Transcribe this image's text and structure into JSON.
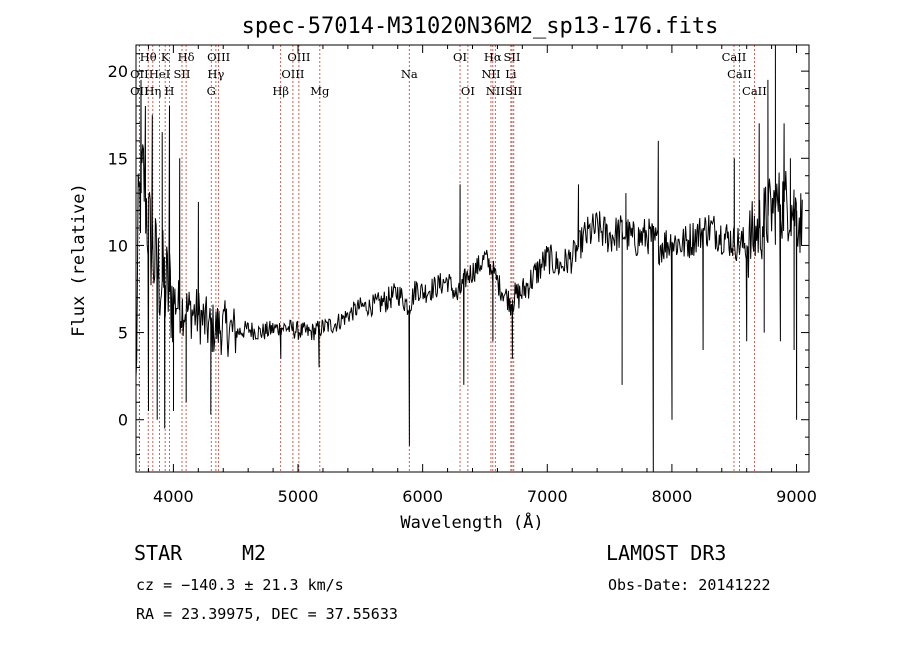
{
  "chart_data": {
    "type": "line",
    "title": "spec-57014-M31020N36M2_sp13-176.fits",
    "xlabel": "Wavelength (Å)",
    "ylabel": "Flux (relative)",
    "xlim": [
      3700,
      9100
    ],
    "ylim": [
      -3.0,
      21.5
    ],
    "x_ticks": [
      4000,
      5000,
      6000,
      7000,
      8000,
      9000
    ],
    "x_tick_labels": [
      "4000",
      "5000",
      "6000",
      "7000",
      "8000",
      "9000"
    ],
    "y_ticks": [
      0,
      5,
      10,
      15,
      20
    ],
    "y_tick_labels": [
      "0",
      "5",
      "10",
      "15",
      "20"
    ],
    "spectrum_anchors": [
      [
        3700,
        1.5
      ],
      [
        3720,
        12.0
      ],
      [
        3760,
        14.0
      ],
      [
        3800,
        11.0
      ],
      [
        3850,
        9.0
      ],
      [
        3900,
        8.0
      ],
      [
        3950,
        7.5
      ],
      [
        4000,
        7.0
      ],
      [
        4050,
        6.5
      ],
      [
        4100,
        6.3
      ],
      [
        4200,
        6.0
      ],
      [
        4300,
        5.2
      ],
      [
        4400,
        5.3
      ],
      [
        4500,
        5.0
      ],
      [
        4600,
        5.2
      ],
      [
        4700,
        5.0
      ],
      [
        4800,
        5.2
      ],
      [
        4900,
        5.3
      ],
      [
        5000,
        5.1
      ],
      [
        5100,
        5.0
      ],
      [
        5200,
        5.3
      ],
      [
        5300,
        5.5
      ],
      [
        5400,
        6.0
      ],
      [
        5500,
        6.5
      ],
      [
        5600,
        6.5
      ],
      [
        5700,
        6.8
      ],
      [
        5800,
        7.3
      ],
      [
        5890,
        6.5
      ],
      [
        5950,
        7.6
      ],
      [
        6000,
        7.3
      ],
      [
        6100,
        7.6
      ],
      [
        6200,
        8.0
      ],
      [
        6280,
        7.0
      ],
      [
        6350,
        8.2
      ],
      [
        6450,
        8.8
      ],
      [
        6500,
        9.3
      ],
      [
        6560,
        8.6
      ],
      [
        6620,
        7.6
      ],
      [
        6700,
        6.8
      ],
      [
        6800,
        7.3
      ],
      [
        6900,
        8.3
      ],
      [
        7000,
        9.3
      ],
      [
        7100,
        8.8
      ],
      [
        7200,
        9.3
      ],
      [
        7300,
        10.5
      ],
      [
        7400,
        11.0
      ],
      [
        7500,
        10.5
      ],
      [
        7600,
        10.8
      ],
      [
        7700,
        10.3
      ],
      [
        7800,
        10.6
      ],
      [
        7900,
        10.0
      ],
      [
        8000,
        10.2
      ],
      [
        8100,
        10.1
      ],
      [
        8200,
        10.6
      ],
      [
        8300,
        11.0
      ],
      [
        8400,
        10.6
      ],
      [
        8500,
        10.2
      ],
      [
        8600,
        10.0
      ],
      [
        8700,
        11.0
      ],
      [
        8800,
        12.0
      ],
      [
        8900,
        12.5
      ],
      [
        9000,
        12.0
      ],
      [
        9050,
        11.0
      ]
    ],
    "spectrum_spikes": [
      [
        3740,
        19.5
      ],
      [
        3775,
        18.0
      ],
      [
        3800,
        0.5
      ],
      [
        3830,
        17.5
      ],
      [
        3870,
        0.0
      ],
      [
        3910,
        16.5
      ],
      [
        3930,
        -0.5
      ],
      [
        3968,
        18.0
      ],
      [
        4000,
        0.5
      ],
      [
        4050,
        15.0
      ],
      [
        4102,
        1.0
      ],
      [
        4200,
        12.5
      ],
      [
        4300,
        0.3
      ],
      [
        4861,
        3.5
      ],
      [
        5169,
        3.0
      ],
      [
        5893,
        -1.5
      ],
      [
        6300,
        13.5
      ],
      [
        6330,
        2.0
      ],
      [
        6563,
        4.5
      ],
      [
        6720,
        3.5
      ],
      [
        7250,
        13.5
      ],
      [
        7600,
        2.0
      ],
      [
        7630,
        13.0
      ],
      [
        7850,
        -3.0
      ],
      [
        7890,
        16.0
      ],
      [
        8000,
        0.0
      ],
      [
        8250,
        4.0
      ],
      [
        8500,
        15.0
      ],
      [
        8600,
        4.5
      ],
      [
        8700,
        17.0
      ],
      [
        8740,
        5.0
      ],
      [
        8770,
        19.5
      ],
      [
        8830,
        21.5
      ],
      [
        8870,
        4.5
      ],
      [
        8900,
        17.0
      ],
      [
        8950,
        15.0
      ],
      [
        8980,
        4.0
      ],
      [
        9000,
        0.0
      ]
    ],
    "line_markers": [
      {
        "label": "Hθ",
        "wave": 3798,
        "row": 1
      },
      {
        "label": "OII",
        "wave": 3727,
        "row": 2
      },
      {
        "label": "OII",
        "wave": 3727,
        "row": 3
      },
      {
        "label": "Hη",
        "wave": 3835,
        "row": 3
      },
      {
        "label": "K",
        "wave": 3934,
        "row": 1
      },
      {
        "label": "HeI",
        "wave": 3889,
        "row": 2
      },
      {
        "label": "H",
        "wave": 3968,
        "row": 3
      },
      {
        "label": "SII",
        "wave": 4069,
        "row": 2
      },
      {
        "label": "Hδ",
        "wave": 4102,
        "row": 1
      },
      {
        "label": "OIII",
        "wave": 4363,
        "row": 1
      },
      {
        "label": "Hγ",
        "wave": 4341,
        "row": 2
      },
      {
        "label": "G",
        "wave": 4304,
        "row": 3
      },
      {
        "label": "Hβ",
        "wave": 4861,
        "row": 3
      },
      {
        "label": "OIII",
        "wave": 5007,
        "row": 1
      },
      {
        "label": "OIII",
        "wave": 4959,
        "row": 2
      },
      {
        "label": "Mg",
        "wave": 5175,
        "row": 3
      },
      {
        "label": "Na",
        "wave": 5893,
        "row": 2
      },
      {
        "label": "OI",
        "wave": 6300,
        "row": 1
      },
      {
        "label": "OI",
        "wave": 6363,
        "row": 3
      },
      {
        "label": "Hα",
        "wave": 6563,
        "row": 1
      },
      {
        "label": "NII",
        "wave": 6548,
        "row": 2
      },
      {
        "label": "NII",
        "wave": 6583,
        "row": 3
      },
      {
        "label": "SII",
        "wave": 6717,
        "row": 1
      },
      {
        "label": "Li",
        "wave": 6708,
        "row": 2
      },
      {
        "label": "SII",
        "wave": 6731,
        "row": 3
      },
      {
        "label": "CaII",
        "wave": 8498,
        "row": 1
      },
      {
        "label": "CaII",
        "wave": 8542,
        "row": 2
      },
      {
        "label": "CaII",
        "wave": 8662,
        "row": 3
      }
    ],
    "grid": false,
    "legend": "none"
  },
  "info": {
    "star": "STAR",
    "subclass": "M2",
    "survey": "LAMOST DR3",
    "cz": "cz = −140.3 ± 21.3 km/s",
    "obs_date": "Obs-Date: 20141222",
    "radec": "RA =  23.39975, DEC =  37.55633"
  }
}
